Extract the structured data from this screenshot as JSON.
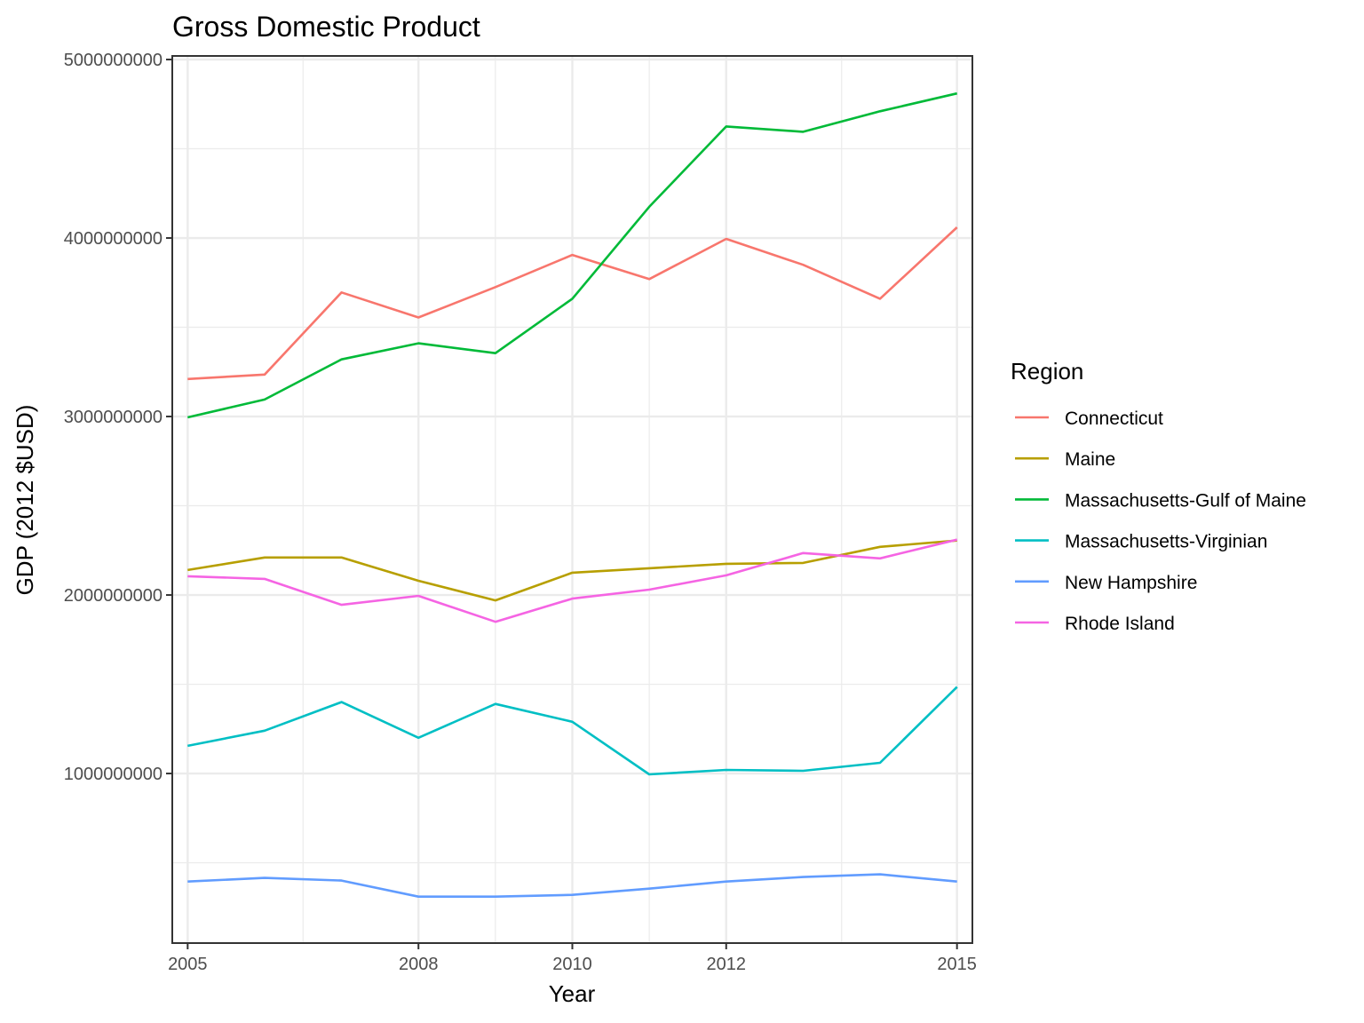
{
  "chart_data": {
    "type": "line",
    "title": "Gross Domestic Product",
    "xlabel": "Year",
    "ylabel": "GDP (2012 $USD)",
    "xlim": [
      2004.8,
      2015.2
    ],
    "ylim": [
      50000000,
      5020000000
    ],
    "x_ticks": [
      2005,
      2008,
      2010,
      2012,
      2015
    ],
    "x_tick_labels": [
      "2005",
      "2008",
      "2010",
      "2012",
      "2015"
    ],
    "y_ticks": [
      1000000000,
      2000000000,
      3000000000,
      4000000000,
      5000000000
    ],
    "y_tick_labels": [
      "1000000000",
      "2000000000",
      "3000000000",
      "4000000000",
      "5000000000"
    ],
    "grid": true,
    "legend_title": "Region",
    "legend_position": "right",
    "x": [
      2005,
      2006,
      2007,
      2008,
      2009,
      2010,
      2011,
      2012,
      2013,
      2014,
      2015
    ],
    "series": [
      {
        "name": "Connecticut",
        "color": "#F8766D",
        "values": [
          3210000000,
          3235000000,
          3695000000,
          3555000000,
          3725000000,
          3905000000,
          3770000000,
          3995000000,
          3850000000,
          3660000000,
          4060000000
        ]
      },
      {
        "name": "Maine",
        "color": "#B79F00",
        "values": [
          2140000000,
          2210000000,
          2210000000,
          2080000000,
          1970000000,
          2125000000,
          2150000000,
          2175000000,
          2180000000,
          2270000000,
          2305000000
        ]
      },
      {
        "name": "Massachusetts-Gulf of Maine",
        "color": "#00BA38",
        "values": [
          2995000000,
          3095000000,
          3320000000,
          3410000000,
          3355000000,
          3660000000,
          4175000000,
          4625000000,
          4595000000,
          4710000000,
          4810000000
        ]
      },
      {
        "name": "Massachusetts-Virginian",
        "color": "#00BFC4",
        "values": [
          1155000000,
          1240000000,
          1400000000,
          1200000000,
          1390000000,
          1290000000,
          995000000,
          1020000000,
          1015000000,
          1060000000,
          1485000000
        ]
      },
      {
        "name": "New Hampshire",
        "color": "#619CFF",
        "values": [
          395000000,
          415000000,
          400000000,
          310000000,
          310000000,
          320000000,
          355000000,
          395000000,
          420000000,
          435000000,
          395000000
        ]
      },
      {
        "name": "Rhode Island",
        "color": "#F564E3",
        "values": [
          2105000000,
          2090000000,
          1945000000,
          1995000000,
          1850000000,
          1980000000,
          2030000000,
          2110000000,
          2235000000,
          2205000000,
          2310000000
        ]
      }
    ]
  }
}
